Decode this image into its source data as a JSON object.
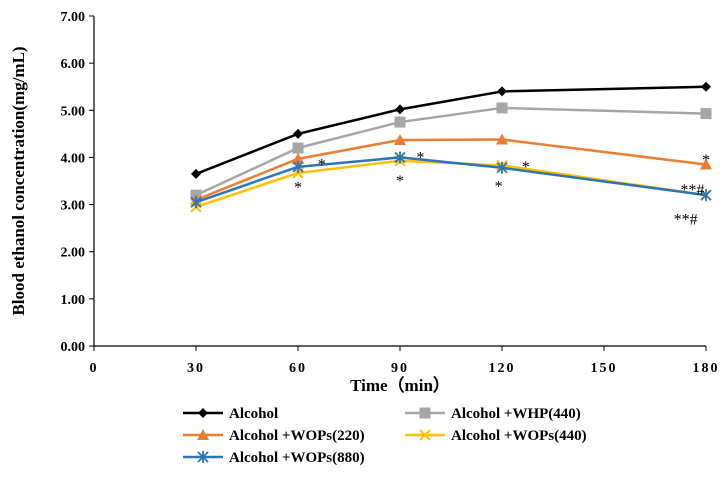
{
  "chart_data": {
    "type": "line",
    "title": "",
    "xlabel": "Time（min）",
    "ylabel": "Blood ethanol concentration(mg/mL)",
    "xlim": [
      0,
      180
    ],
    "ylim": [
      0,
      7
    ],
    "x_ticks": [
      "0",
      "30",
      "60",
      "90",
      "120",
      "150",
      "180"
    ],
    "y_ticks": [
      "0.00",
      "1.00",
      "2.00",
      "3.00",
      "4.00",
      "5.00",
      "6.00",
      "7.00"
    ],
    "grid": false,
    "legend_position": "bottom",
    "x": [
      30,
      60,
      90,
      120,
      180
    ],
    "series": [
      {
        "name": "Alcohol",
        "color": "#000000",
        "marker": "diamond",
        "values": [
          3.65,
          4.5,
          5.02,
          5.4,
          5.5
        ]
      },
      {
        "name": "Alcohol +WHP(440)",
        "color": "#A6A6A6",
        "marker": "square",
        "values": [
          3.2,
          4.2,
          4.75,
          5.05,
          4.93
        ]
      },
      {
        "name": "Alcohol +WOPs(220)",
        "color": "#ED7D31",
        "marker": "triangle",
        "values": [
          3.1,
          3.97,
          4.37,
          4.38,
          3.85
        ]
      },
      {
        "name": "Alcohol +WOPs(440)",
        "color": "#FFC000",
        "marker": "x",
        "values": [
          2.95,
          3.67,
          3.93,
          3.83,
          3.2
        ]
      },
      {
        "name": "Alcohol +WOPs(880)",
        "color": "#2E75B6",
        "marker": "star",
        "values": [
          3.05,
          3.8,
          4.0,
          3.78,
          3.2
        ]
      }
    ],
    "annotations": [
      {
        "text": "*",
        "x": 60,
        "y": 3.38
      },
      {
        "text": "*",
        "x": 67,
        "y": 3.87
      },
      {
        "text": "*",
        "x": 90,
        "y": 3.52
      },
      {
        "text": "*",
        "x": 96,
        "y": 4.02
      },
      {
        "text": "*",
        "x": 119,
        "y": 3.4
      },
      {
        "text": "*",
        "x": 127,
        "y": 3.82
      },
      {
        "text": "*",
        "x": 180,
        "y": 3.97
      },
      {
        "text": "**#",
        "x": 176,
        "y": 3.33
      },
      {
        "text": "**#",
        "x": 174,
        "y": 2.7
      }
    ]
  }
}
